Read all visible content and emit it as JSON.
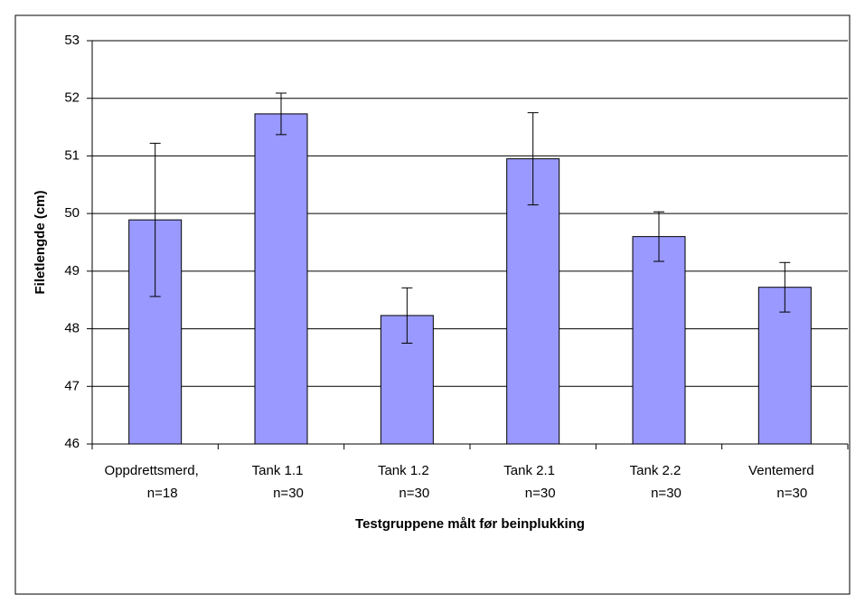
{
  "chart_data": {
    "type": "bar",
    "ylabel": "Filetlengde (cm)",
    "xlabel": "Testgruppene målt før beinplukking",
    "categories": [
      [
        "Oppdrettsmerd,",
        "n=18"
      ],
      [
        "Tank 1.1",
        "n=30"
      ],
      [
        "Tank 1.2",
        "n=30"
      ],
      [
        "Tank 2.1",
        "n=30"
      ],
      [
        "Tank 2.2",
        "n=30"
      ],
      [
        "Ventemerd",
        "n=30"
      ]
    ],
    "values": [
      49.89,
      51.73,
      48.23,
      50.95,
      49.6,
      48.72
    ],
    "errors": [
      1.33,
      0.36,
      0.48,
      0.8,
      0.43,
      0.43
    ],
    "color": "#9999ff",
    "ylim": [
      46,
      53
    ],
    "yticks": [
      46,
      47,
      48,
      49,
      50,
      51,
      52,
      53
    ],
    "grid": true
  }
}
